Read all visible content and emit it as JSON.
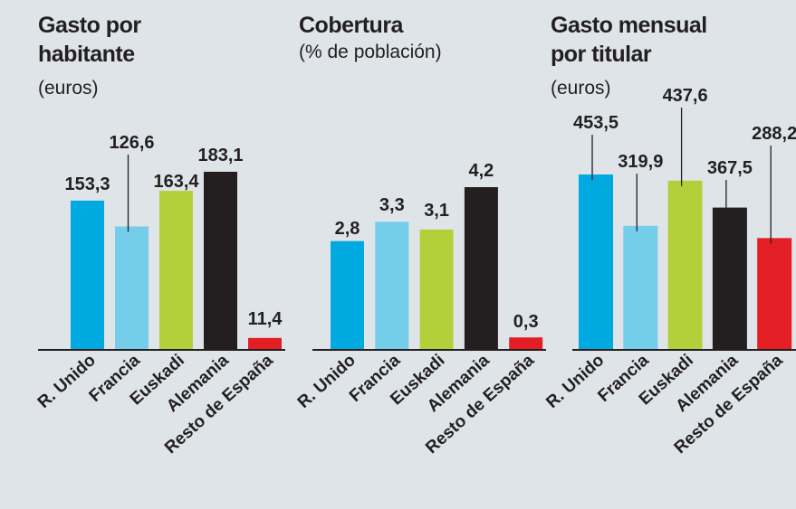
{
  "chart_data": [
    {
      "type": "bar",
      "title": "Gasto por habitante",
      "subtitle": "(euros)",
      "categories": [
        "R. Unido",
        "Francia",
        "Euskadi",
        "Alemania",
        "Resto de España"
      ],
      "values": [
        153.3,
        126.6,
        163.4,
        183.1,
        11.4
      ],
      "value_labels": [
        "153,3",
        "126,6",
        "163,4",
        "183,1",
        "11,4"
      ],
      "colors": [
        "#00a9e0",
        "#74cde9",
        "#b5cf3a",
        "#231f20",
        "#e31e24"
      ]
    },
    {
      "type": "bar",
      "title": "Cobertura",
      "subtitle": "(% de población)",
      "categories": [
        "R. Unido",
        "Francia",
        "Euskadi",
        "Alemania",
        "Resto de España"
      ],
      "values": [
        2.8,
        3.3,
        3.1,
        4.2,
        0.3
      ],
      "value_labels": [
        "2,8",
        "3,3",
        "3,1",
        "4,2",
        "0,3"
      ],
      "colors": [
        "#00a9e0",
        "#74cde9",
        "#b5cf3a",
        "#231f20",
        "#e31e24"
      ]
    },
    {
      "type": "bar",
      "title": "Gasto mensual por titular",
      "subtitle": "(euros)",
      "categories": [
        "R. Unido",
        "Francia",
        "Euskadi",
        "Alemania",
        "Resto de España"
      ],
      "values": [
        453.5,
        319.9,
        437.6,
        367.5,
        288.2
      ],
      "value_labels": [
        "453,5",
        "319,9",
        "437,6",
        "367,5",
        "288,2"
      ],
      "colors": [
        "#00a9e0",
        "#74cde9",
        "#b5cf3a",
        "#231f20",
        "#e31e24"
      ]
    }
  ]
}
